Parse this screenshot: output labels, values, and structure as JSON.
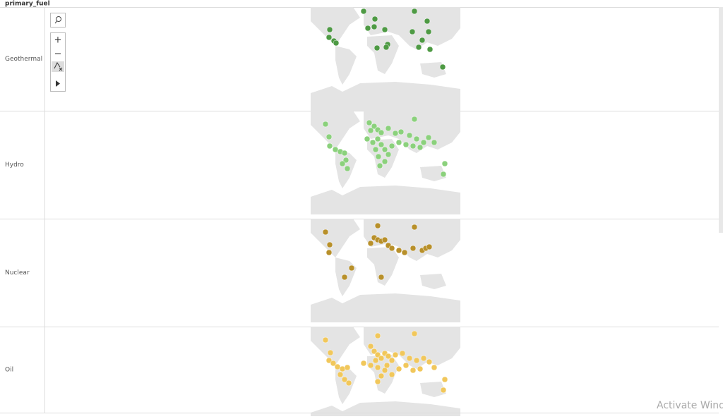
{
  "header": {
    "title": "primary_fuel"
  },
  "rows": [
    {
      "label": "Geothermal"
    },
    {
      "label": "Hydro"
    },
    {
      "label": "Nuclear"
    },
    {
      "label": "Oil"
    }
  ],
  "watermark": {
    "text": "Activate Wind"
  }
}
